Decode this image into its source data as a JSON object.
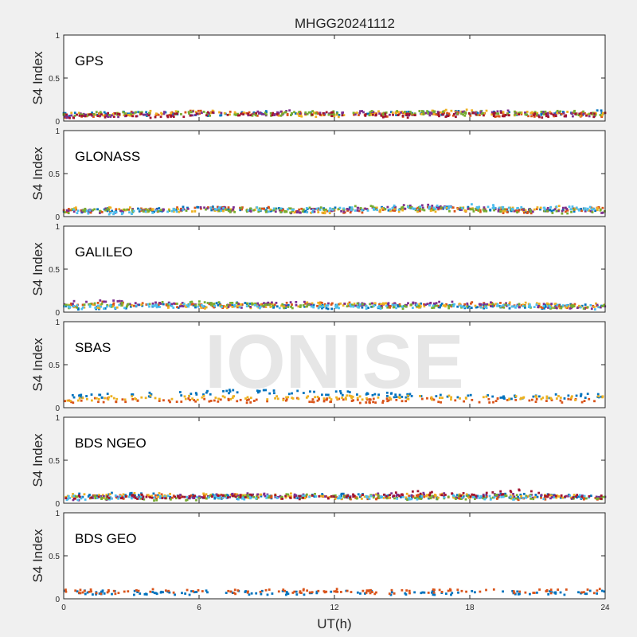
{
  "title": "MHGG20241112",
  "watermark": "IONISE",
  "xlabel": "UT(h)",
  "chart_data": {
    "type": "scatter",
    "title": "MHGG20241112",
    "xlabel": "UT(h)",
    "ylabel": "S4 Index",
    "xlim": [
      0,
      24
    ],
    "ylim": [
      0,
      1
    ],
    "xticks": [
      "0",
      "6",
      "12",
      "18",
      "24"
    ],
    "yticks": [
      "0",
      "0.5",
      "1"
    ],
    "grid": false,
    "colors": [
      "#0072BD",
      "#D95319",
      "#EDB120",
      "#7E2F8E",
      "#77AC30",
      "#4DBEEE",
      "#A2142F"
    ],
    "panels": [
      {
        "label": "GPS",
        "series": [
          {
            "color": "#0072BD",
            "x": [
              0,
              2,
              4,
              6,
              8,
              10,
              12,
              14,
              16,
              18,
              20,
              22,
              24
            ],
            "y": [
              0.07,
              0.09,
              0.08,
              0.07,
              0.09,
              0.1,
              0.09,
              0.08,
              0.09,
              0.1,
              0.08,
              0.09,
              0.1
            ]
          },
          {
            "color": "#D95319",
            "x": [
              0,
              2,
              4,
              6,
              8,
              10,
              12,
              14,
              16,
              18,
              20,
              22,
              24
            ],
            "y": [
              0.06,
              0.08,
              0.09,
              0.1,
              0.08,
              0.09,
              0.08,
              0.07,
              0.08,
              0.08,
              0.07,
              0.08,
              0.07
            ]
          },
          {
            "color": "#EDB120",
            "x": [
              0,
              2,
              4,
              6,
              8,
              10,
              12,
              14,
              16,
              18,
              20,
              22,
              24
            ],
            "y": [
              0.08,
              0.07,
              0.1,
              0.12,
              0.09,
              0.08,
              0.07,
              0.09,
              0.1,
              0.11,
              0.09,
              0.08,
              0.09
            ]
          },
          {
            "color": "#7E2F8E",
            "x": [
              0,
              2,
              4,
              6,
              8,
              10,
              12,
              14,
              16,
              18,
              20,
              22,
              24
            ],
            "y": [
              0.06,
              0.07,
              0.08,
              0.09,
              0.08,
              0.1,
              0.09,
              0.1,
              0.08,
              0.09,
              0.1,
              0.08,
              0.07
            ]
          },
          {
            "color": "#77AC30",
            "x": [
              0,
              2,
              4,
              6,
              8,
              10,
              12,
              14,
              16,
              18,
              20,
              22,
              24
            ],
            "y": [
              0.07,
              0.09,
              0.08,
              0.09,
              0.07,
              0.08,
              0.1,
              0.09,
              0.1,
              0.08,
              0.09,
              0.1,
              0.08
            ]
          },
          {
            "color": "#A2142F",
            "x": [
              0,
              2,
              4,
              6,
              8,
              10,
              12,
              14,
              16,
              18,
              20,
              22,
              24
            ],
            "y": [
              0.05,
              0.07,
              0.06,
              0.08,
              0.07,
              0.09,
              0.08,
              0.07,
              0.06,
              0.08,
              0.07,
              0.06,
              0.07
            ]
          }
        ]
      },
      {
        "label": "GLONASS",
        "series": [
          {
            "color": "#0072BD",
            "x": [
              0,
              2,
              4,
              6,
              8,
              10,
              12,
              14,
              16,
              18,
              20,
              22,
              24
            ],
            "y": [
              0.06,
              0.08,
              0.07,
              0.1,
              0.09,
              0.07,
              0.08,
              0.09,
              0.08,
              0.1,
              0.07,
              0.06,
              0.08
            ]
          },
          {
            "color": "#D95319",
            "x": [
              0,
              2,
              4,
              6,
              8,
              10,
              12,
              14,
              16,
              18,
              20,
              22,
              24
            ],
            "y": [
              0.07,
              0.06,
              0.08,
              0.09,
              0.1,
              0.08,
              0.06,
              0.07,
              0.09,
              0.08,
              0.06,
              0.07,
              0.09
            ]
          },
          {
            "color": "#EDB120",
            "x": [
              0,
              2,
              4,
              6,
              8,
              10,
              12,
              14,
              16,
              18,
              20,
              22,
              24
            ],
            "y": [
              0.09,
              0.1,
              0.07,
              0.08,
              0.09,
              0.07,
              0.06,
              0.08,
              0.07,
              0.09,
              0.08,
              0.1,
              0.09
            ]
          },
          {
            "color": "#7E2F8E",
            "x": [
              0,
              2,
              4,
              6,
              8,
              10,
              12,
              14,
              16,
              18,
              20,
              22,
              24
            ],
            "y": [
              0.05,
              0.07,
              0.06,
              0.09,
              0.08,
              0.06,
              0.07,
              0.1,
              0.12,
              0.09,
              0.07,
              0.08,
              0.06
            ]
          },
          {
            "color": "#77AC30",
            "x": [
              0,
              2,
              4,
              6,
              8,
              10,
              12,
              14,
              16,
              18,
              20,
              22,
              24
            ],
            "y": [
              0.06,
              0.08,
              0.07,
              0.06,
              0.08,
              0.07,
              0.09,
              0.11,
              0.09,
              0.08,
              0.07,
              0.06,
              0.07
            ]
          },
          {
            "color": "#4DBEEE",
            "x": [
              0,
              2,
              4,
              6,
              8,
              10,
              12,
              14,
              16,
              18,
              20,
              22,
              24
            ],
            "y": [
              0.07,
              0.05,
              0.06,
              0.08,
              0.09,
              0.07,
              0.08,
              0.1,
              0.11,
              0.12,
              0.1,
              0.09,
              0.1
            ]
          }
        ]
      },
      {
        "label": "GALILEO",
        "series": [
          {
            "color": "#0072BD",
            "x": [
              0,
              2,
              4,
              6,
              8,
              10,
              12,
              14,
              16,
              18,
              20,
              22,
              24
            ],
            "y": [
              0.05,
              0.06,
              0.07,
              0.08,
              0.09,
              0.07,
              0.06,
              0.07,
              0.08,
              0.07,
              0.06,
              0.07,
              0.06
            ]
          },
          {
            "color": "#D95319",
            "x": [
              0,
              2,
              4,
              6,
              8,
              10,
              12,
              14,
              16,
              18,
              20,
              22,
              24
            ],
            "y": [
              0.08,
              0.1,
              0.09,
              0.07,
              0.08,
              0.1,
              0.09,
              0.08,
              0.07,
              0.09,
              0.08,
              0.07,
              0.08
            ]
          },
          {
            "color": "#EDB120",
            "x": [
              0,
              2,
              4,
              6,
              8,
              10,
              12,
              14,
              16,
              18,
              20,
              22,
              24
            ],
            "y": [
              0.06,
              0.07,
              0.08,
              0.06,
              0.07,
              0.08,
              0.1,
              0.09,
              0.07,
              0.08,
              0.09,
              0.07,
              0.08
            ]
          },
          {
            "color": "#7E2F8E",
            "x": [
              0,
              2,
              4,
              6,
              8,
              10,
              12,
              14,
              16,
              18,
              20,
              22,
              24
            ],
            "y": [
              0.1,
              0.12,
              0.09,
              0.08,
              0.07,
              0.1,
              0.09,
              0.08,
              0.11,
              0.1,
              0.08,
              0.07,
              0.06
            ]
          },
          {
            "color": "#77AC30",
            "x": [
              0,
              2,
              4,
              6,
              8,
              10,
              12,
              14,
              16,
              18,
              20,
              22,
              24
            ],
            "y": [
              0.07,
              0.08,
              0.09,
              0.1,
              0.08,
              0.07,
              0.08,
              0.07,
              0.06,
              0.08,
              0.07,
              0.06,
              0.07
            ]
          },
          {
            "color": "#4DBEEE",
            "x": [
              0,
              2,
              4,
              6,
              8,
              10,
              12,
              14,
              16,
              18,
              20,
              22,
              24
            ],
            "y": [
              0.05,
              0.06,
              0.08,
              0.07,
              0.06,
              0.05,
              0.07,
              0.06,
              0.07,
              0.08,
              0.06,
              0.07,
              0.05
            ]
          }
        ]
      },
      {
        "label": "SBAS",
        "series": [
          {
            "color": "#0072BD",
            "x": [
              0,
              2,
              4,
              6,
              8,
              10,
              12,
              14,
              16,
              18,
              20,
              22,
              24
            ],
            "y": [
              0.12,
              0.14,
              0.15,
              0.16,
              0.2,
              0.18,
              0.17,
              0.15,
              0.14,
              0.13,
              0.12,
              0.13,
              0.14
            ]
          },
          {
            "color": "#D95319",
            "x": [
              0,
              2,
              4,
              6,
              8,
              10,
              12,
              14,
              16,
              18,
              20,
              22,
              24
            ],
            "y": [
              0.08,
              0.09,
              0.08,
              0.09,
              0.08,
              0.09,
              0.08,
              0.08,
              0.09,
              0.08,
              0.09,
              0.08,
              0.09
            ]
          },
          {
            "color": "#EDB120",
            "x": [
              0,
              2,
              4,
              6,
              8,
              10,
              12,
              14,
              16,
              18,
              20,
              22,
              24
            ],
            "y": [
              0.1,
              0.11,
              0.12,
              0.11,
              0.12,
              0.11,
              0.12,
              0.11,
              0.12,
              0.11,
              0.12,
              0.11,
              0.12
            ]
          }
        ]
      },
      {
        "label": "BDS NGEO",
        "series": [
          {
            "color": "#0072BD",
            "x": [
              0,
              2,
              4,
              6,
              8,
              10,
              12,
              14,
              16,
              18,
              20,
              22,
              24
            ],
            "y": [
              0.08,
              0.1,
              0.09,
              0.08,
              0.07,
              0.08,
              0.09,
              0.08,
              0.07,
              0.08,
              0.09,
              0.08,
              0.07
            ]
          },
          {
            "color": "#D95319",
            "x": [
              0,
              2,
              4,
              6,
              8,
              10,
              12,
              14,
              16,
              18,
              20,
              22,
              24
            ],
            "y": [
              0.06,
              0.07,
              0.08,
              0.07,
              0.09,
              0.07,
              0.06,
              0.07,
              0.08,
              0.07,
              0.06,
              0.07,
              0.06
            ]
          },
          {
            "color": "#EDB120",
            "x": [
              0,
              2,
              4,
              6,
              8,
              10,
              12,
              14,
              16,
              18,
              20,
              22,
              24
            ],
            "y": [
              0.09,
              0.08,
              0.1,
              0.09,
              0.08,
              0.09,
              0.07,
              0.08,
              0.09,
              0.08,
              0.07,
              0.08,
              0.09
            ]
          },
          {
            "color": "#7E2F8E",
            "x": [
              0,
              2,
              4,
              6,
              8,
              10,
              12,
              14,
              16,
              18,
              20,
              22,
              24
            ],
            "y": [
              0.05,
              0.06,
              0.07,
              0.08,
              0.1,
              0.08,
              0.07,
              0.09,
              0.1,
              0.08,
              0.09,
              0.07,
              0.06
            ]
          },
          {
            "color": "#77AC30",
            "x": [
              0,
              2,
              4,
              6,
              8,
              10,
              12,
              14,
              16,
              18,
              20,
              22,
              24
            ],
            "y": [
              0.07,
              0.06,
              0.05,
              0.06,
              0.07,
              0.09,
              0.08,
              0.07,
              0.06,
              0.07,
              0.08,
              0.06,
              0.07
            ]
          },
          {
            "color": "#4DBEEE",
            "x": [
              0,
              2,
              4,
              6,
              8,
              10,
              12,
              14,
              16,
              18,
              20,
              22,
              24
            ],
            "y": [
              0.06,
              0.07,
              0.06,
              0.07,
              0.06,
              0.07,
              0.08,
              0.07,
              0.06,
              0.07,
              0.06,
              0.07,
              0.08
            ]
          },
          {
            "color": "#A2142F",
            "x": [
              0,
              2,
              4,
              6,
              8,
              10,
              12,
              14,
              16,
              18,
              20,
              22,
              24
            ],
            "y": [
              0.07,
              0.08,
              0.07,
              0.06,
              0.08,
              0.07,
              0.08,
              0.09,
              0.12,
              0.09,
              0.14,
              0.08,
              0.07
            ]
          }
        ]
      },
      {
        "label": "BDS GEO",
        "series": [
          {
            "color": "#0072BD",
            "x": [
              0,
              2,
              4,
              6,
              8,
              10,
              12,
              14,
              16,
              18,
              20,
              22,
              24
            ],
            "y": [
              0.07,
              0.07,
              0.07,
              0.07,
              0.07,
              0.07,
              0.07,
              0.07,
              0.07,
              0.07,
              0.07,
              0.07,
              0.07
            ]
          },
          {
            "color": "#D95319",
            "x": [
              0,
              2,
              4,
              6,
              8,
              10,
              12,
              14,
              16,
              18,
              20,
              22,
              24
            ],
            "y": [
              0.09,
              0.08,
              0.09,
              0.08,
              0.08,
              0.09,
              0.09,
              0.08,
              0.09,
              0.09,
              0.09,
              0.09,
              0.09
            ]
          }
        ]
      }
    ]
  }
}
